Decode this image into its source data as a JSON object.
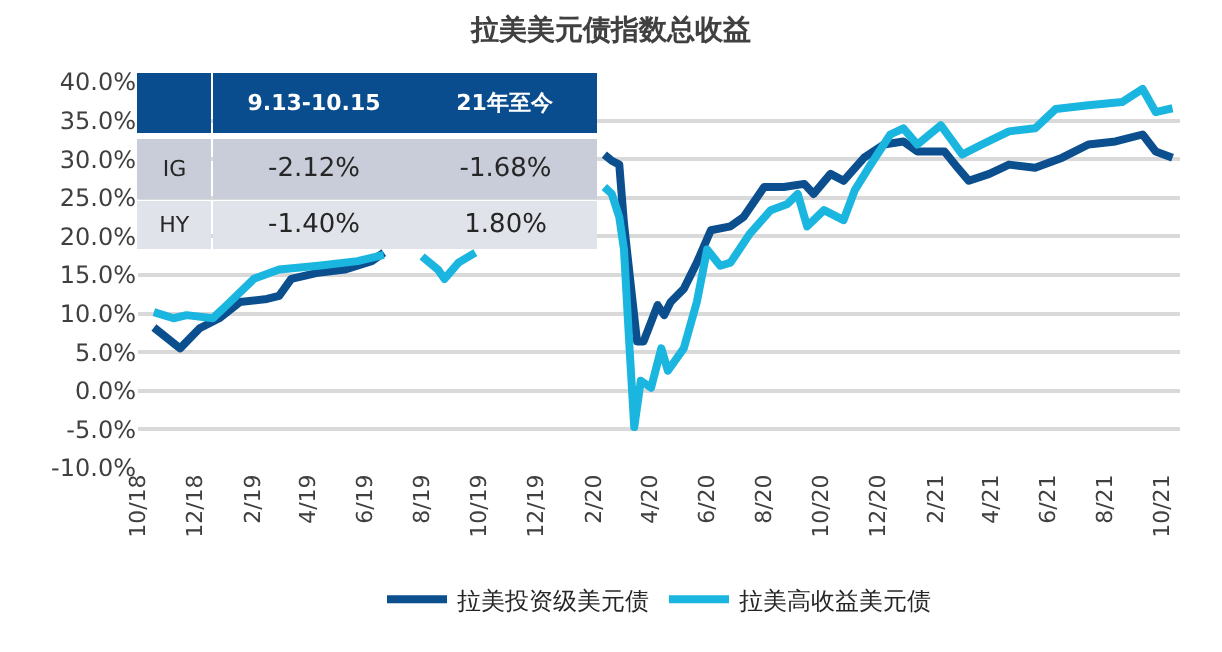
{
  "chart_data": {
    "type": "line",
    "title": "拉美美元债指数总收益",
    "xlim": [
      "2018-10-01",
      "2021-10-20"
    ],
    "xticks": [
      {
        "value": "2018-10-01",
        "label": "10/18"
      },
      {
        "value": "2018-12-01",
        "label": "12/18"
      },
      {
        "value": "2019-02-01",
        "label": "2/19"
      },
      {
        "value": "2019-04-01",
        "label": "4/19"
      },
      {
        "value": "2019-06-01",
        "label": "6/19"
      },
      {
        "value": "2019-08-01",
        "label": "8/19"
      },
      {
        "value": "2019-10-01",
        "label": "10/19"
      },
      {
        "value": "2019-12-01",
        "label": "12/19"
      },
      {
        "value": "2020-02-01",
        "label": "2/20"
      },
      {
        "value": "2020-04-01",
        "label": "4/20"
      },
      {
        "value": "2020-06-01",
        "label": "6/20"
      },
      {
        "value": "2020-08-01",
        "label": "8/20"
      },
      {
        "value": "2020-10-01",
        "label": "10/20"
      },
      {
        "value": "2020-12-01",
        "label": "12/20"
      },
      {
        "value": "2021-02-01",
        "label": "2/21"
      },
      {
        "value": "2021-04-01",
        "label": "4/21"
      },
      {
        "value": "2021-06-01",
        "label": "6/21"
      },
      {
        "value": "2021-08-01",
        "label": "8/21"
      },
      {
        "value": "2021-10-01",
        "label": "10/21"
      }
    ],
    "ylim": [
      -10,
      40
    ],
    "yticks": [
      {
        "value": -10,
        "label": "-10.0%"
      },
      {
        "value": -5,
        "label": "-5.0%"
      },
      {
        "value": 0,
        "label": "0.0%"
      },
      {
        "value": 5,
        "label": "5.0%"
      },
      {
        "value": 10,
        "label": "10.0%"
      },
      {
        "value": 15,
        "label": "15.0%"
      },
      {
        "value": 20,
        "label": "20.0%"
      },
      {
        "value": 25,
        "label": "25.0%"
      },
      {
        "value": 30,
        "label": "30.0%"
      },
      {
        "value": 35,
        "label": "35.0%"
      },
      {
        "value": 40,
        "label": "40.0%"
      }
    ],
    "grid": "y",
    "legend": "bottom",
    "marker": "none",
    "line_style": "solid",
    "annotations": [
      "9.13-10.15",
      "21年至今",
      "IG",
      "-2.12%",
      "-1.68%",
      "HY",
      "-1.40%",
      "1.80%"
    ],
    "series": [
      {
        "name": "拉美投资级美元债",
        "color": "#0b4f8f",
        "x": [
          "2018-10-18",
          "2018-11-15",
          "2018-12-06",
          "2018-12-27",
          "2019-01-18",
          "2019-02-16",
          "2019-03-01",
          "2019-03-14",
          "2019-04-12",
          "2019-05-10",
          "2019-06-08",
          "2019-06-21",
          "2019-10-01",
          "2020-02-12",
          "2020-02-20",
          "2020-02-28",
          "2020-03-04",
          "2020-03-11",
          "2020-03-18",
          "2020-03-25",
          "2020-04-02",
          "2020-04-09",
          "2020-04-16",
          "2020-04-23",
          "2020-05-07",
          "2020-05-21",
          "2020-06-05",
          "2020-06-26",
          "2020-07-10",
          "2020-08-01",
          "2020-08-22",
          "2020-09-13",
          "2020-09-23",
          "2020-10-11",
          "2020-10-25",
          "2020-11-16",
          "2020-12-07",
          "2020-12-28",
          "2021-01-12",
          "2021-02-10",
          "2021-02-24",
          "2021-03-08",
          "2021-03-30",
          "2021-04-20",
          "2021-05-18",
          "2021-06-16",
          "2021-07-14",
          "2021-08-12",
          "2021-09-10",
          "2021-09-24",
          "2021-10-12"
        ],
        "values": [
          8.2,
          5.5,
          8.1,
          9.4,
          11.5,
          11.9,
          12.3,
          14.5,
          15.3,
          15.7,
          16.8,
          17.9,
          null,
          30.6,
          29.8,
          29.3,
          21.7,
          14.0,
          6.4,
          6.4,
          8.9,
          11.1,
          9.8,
          11.5,
          13.2,
          16.6,
          20.8,
          21.3,
          22.5,
          26.4,
          26.4,
          26.8,
          25.5,
          28.1,
          27.2,
          30.2,
          31.9,
          32.3,
          31.0,
          31.0,
          28.9,
          27.2,
          28.1,
          29.3,
          28.9,
          30.2,
          31.9,
          32.3,
          33.2,
          31.0,
          30.2
        ]
      },
      {
        "name": "拉美高收益美元债",
        "color": "#1ab6e0",
        "x": [
          "2018-10-18",
          "2018-11-08",
          "2018-11-22",
          "2018-12-20",
          "2019-01-04",
          "2019-02-02",
          "2019-03-01",
          "2019-04-12",
          "2019-05-24",
          "2019-06-21",
          "2019-07-10",
          "2019-08-01",
          "2019-08-18",
          "2019-08-25",
          "2019-09-09",
          "2019-09-27",
          "2019-12-01",
          "2020-02-12",
          "2020-02-20",
          "2020-02-28",
          "2020-03-04",
          "2020-03-10",
          "2020-03-15",
          "2020-03-22",
          "2020-04-02",
          "2020-04-13",
          "2020-04-20",
          "2020-05-07",
          "2020-05-21",
          "2020-06-01",
          "2020-06-15",
          "2020-06-26",
          "2020-07-17",
          "2020-08-08",
          "2020-08-26",
          "2020-09-06",
          "2020-09-16",
          "2020-10-04",
          "2020-10-25",
          "2020-11-06",
          "2020-11-23",
          "2020-12-14",
          "2020-12-28",
          "2021-01-12",
          "2021-02-06",
          "2021-03-01",
          "2021-03-22",
          "2021-04-20",
          "2021-05-18",
          "2021-06-09",
          "2021-07-14",
          "2021-08-19",
          "2021-09-10",
          "2021-09-24",
          "2021-10-12"
        ],
        "values": [
          10.2,
          9.4,
          9.8,
          9.4,
          11.1,
          14.5,
          15.7,
          16.2,
          16.8,
          17.6,
          null,
          17.4,
          15.7,
          14.5,
          16.6,
          17.9,
          null,
          26.4,
          25.5,
          22.5,
          18.3,
          5.5,
          -4.7,
          1.3,
          0.4,
          5.5,
          2.6,
          5.5,
          11.5,
          18.3,
          16.2,
          16.6,
          20.4,
          23.4,
          24.2,
          25.5,
          21.3,
          23.4,
          22.1,
          26.0,
          29.3,
          33.2,
          34.0,
          31.9,
          34.4,
          30.6,
          31.9,
          33.6,
          34.0,
          36.5,
          37.0,
          37.4,
          39.1,
          36.1,
          36.6
        ]
      }
    ]
  }
}
